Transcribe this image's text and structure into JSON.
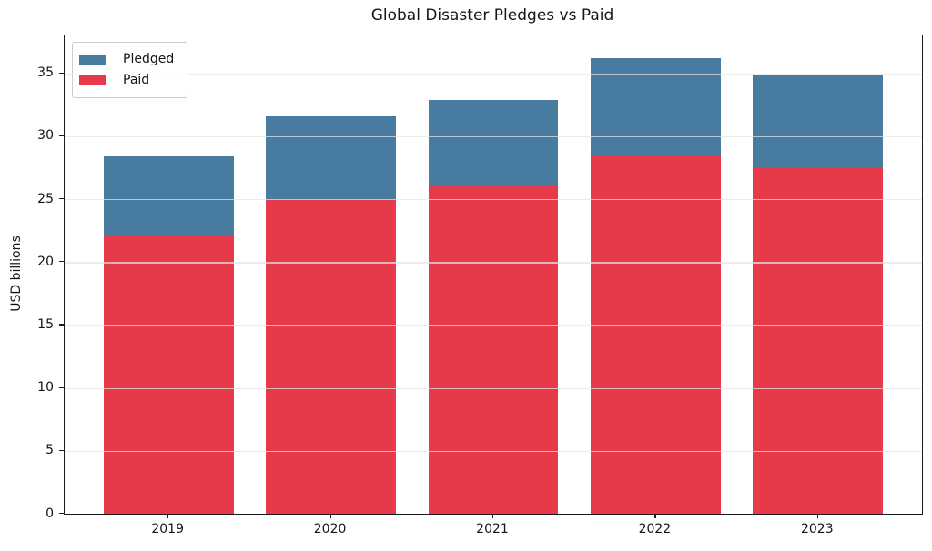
{
  "figure": {
    "title": "Global Disaster Pledges vs Paid",
    "ylabel": "USD billions"
  },
  "legend": {
    "entries": [
      {
        "label": "Pledged",
        "color": "#477CA0"
      },
      {
        "label": "Paid",
        "color": "#E6394A"
      }
    ]
  },
  "chart_data": {
    "type": "bar",
    "mode": "overlay",
    "title": "Global Disaster Pledges vs Paid",
    "xlabel": "",
    "ylabel": "USD billions",
    "categories": [
      "2019",
      "2020",
      "2021",
      "2022",
      "2023"
    ],
    "series": [
      {
        "name": "Pledged",
        "color": "#477CA0",
        "values": [
          28.4,
          31.6,
          32.9,
          36.2,
          34.8
        ]
      },
      {
        "name": "Paid",
        "color": "#E6394A",
        "values": [
          22.1,
          24.9,
          26.0,
          28.4,
          27.5
        ]
      }
    ],
    "ylim": [
      0,
      38.0
    ],
    "yticks": [
      0,
      5,
      10,
      15,
      20,
      25,
      30,
      35
    ],
    "bar_width_fraction": 0.8,
    "xlim": [
      -0.64,
      4.64
    ],
    "grid": true,
    "grid_on_top": true,
    "legend_position": "upper left"
  }
}
